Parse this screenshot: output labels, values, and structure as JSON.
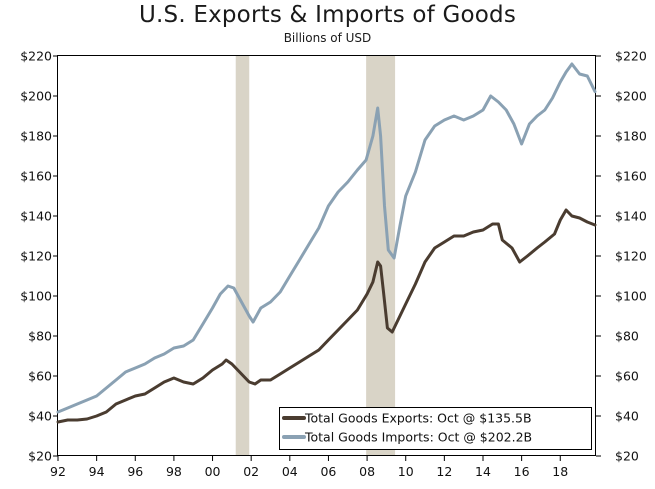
{
  "chart_data": {
    "type": "line",
    "title": "U.S. Exports & Imports of Goods",
    "subtitle": "Billions of USD",
    "xlabel": "",
    "ylabel": "",
    "x_range": [
      1992,
      2019.85
    ],
    "ylim": [
      20,
      220
    ],
    "y_ticks": [
      20,
      40,
      60,
      80,
      100,
      120,
      140,
      160,
      180,
      200,
      220
    ],
    "y_tick_labels": [
      "$20",
      "$40",
      "$60",
      "$80",
      "$100",
      "$120",
      "$140",
      "$160",
      "$180",
      "$200",
      "$220"
    ],
    "x_ticks": [
      1992,
      1994,
      1996,
      1998,
      2000,
      2002,
      2004,
      2006,
      2008,
      2010,
      2012,
      2014,
      2016,
      2018
    ],
    "x_tick_labels": [
      "92",
      "94",
      "96",
      "98",
      "00",
      "02",
      "04",
      "06",
      "08",
      "10",
      "12",
      "14",
      "16",
      "18"
    ],
    "grid": false,
    "dual_y_axis": true,
    "recessions": [
      {
        "start": 2001.2,
        "end": 2001.9
      },
      {
        "start": 2007.95,
        "end": 2009.45
      }
    ],
    "legend_position": "bottom-right",
    "series": [
      {
        "name": "Total Goods Exports: Oct @ $135.5B",
        "color": "#4a3c30",
        "points": [
          [
            1992.0,
            37
          ],
          [
            1992.5,
            38
          ],
          [
            1993.0,
            38
          ],
          [
            1993.5,
            38.5
          ],
          [
            1994.0,
            40
          ],
          [
            1994.5,
            42
          ],
          [
            1995.0,
            46
          ],
          [
            1995.5,
            48
          ],
          [
            1996.0,
            50
          ],
          [
            1996.5,
            51
          ],
          [
            1997.0,
            54
          ],
          [
            1997.5,
            57
          ],
          [
            1998.0,
            59
          ],
          [
            1998.5,
            57
          ],
          [
            1999.0,
            56
          ],
          [
            1999.5,
            59
          ],
          [
            2000.0,
            63
          ],
          [
            2000.5,
            66
          ],
          [
            2000.7,
            68
          ],
          [
            2001.0,
            66
          ],
          [
            2001.5,
            61
          ],
          [
            2001.9,
            57
          ],
          [
            2002.2,
            56
          ],
          [
            2002.5,
            58
          ],
          [
            2003.0,
            58
          ],
          [
            2003.5,
            61
          ],
          [
            2004.0,
            64
          ],
          [
            2004.5,
            67
          ],
          [
            2005.0,
            70
          ],
          [
            2005.5,
            73
          ],
          [
            2006.0,
            78
          ],
          [
            2006.5,
            83
          ],
          [
            2007.0,
            88
          ],
          [
            2007.5,
            93
          ],
          [
            2008.0,
            101
          ],
          [
            2008.3,
            107
          ],
          [
            2008.55,
            117
          ],
          [
            2008.7,
            115
          ],
          [
            2008.85,
            102
          ],
          [
            2009.05,
            84
          ],
          [
            2009.3,
            82
          ],
          [
            2009.6,
            88
          ],
          [
            2010.0,
            96
          ],
          [
            2010.5,
            106
          ],
          [
            2011.0,
            117
          ],
          [
            2011.5,
            124
          ],
          [
            2012.0,
            127
          ],
          [
            2012.5,
            130
          ],
          [
            2013.0,
            130
          ],
          [
            2013.5,
            132
          ],
          [
            2014.0,
            133
          ],
          [
            2014.5,
            136
          ],
          [
            2014.8,
            136
          ],
          [
            2015.0,
            128
          ],
          [
            2015.5,
            124
          ],
          [
            2015.9,
            117
          ],
          [
            2016.3,
            120
          ],
          [
            2016.8,
            124
          ],
          [
            2017.2,
            127
          ],
          [
            2017.7,
            131
          ],
          [
            2018.0,
            138
          ],
          [
            2018.3,
            143
          ],
          [
            2018.6,
            140
          ],
          [
            2019.0,
            139
          ],
          [
            2019.4,
            137
          ],
          [
            2019.8,
            135.5
          ]
        ]
      },
      {
        "name": "Total Goods Imports: Oct @ $202.2B",
        "color": "#8aa1b3",
        "points": [
          [
            1992.0,
            42
          ],
          [
            1992.5,
            44
          ],
          [
            1993.0,
            46
          ],
          [
            1993.5,
            48
          ],
          [
            1994.0,
            50
          ],
          [
            1994.5,
            54
          ],
          [
            1995.0,
            58
          ],
          [
            1995.5,
            62
          ],
          [
            1996.0,
            64
          ],
          [
            1996.5,
            66
          ],
          [
            1997.0,
            69
          ],
          [
            1997.5,
            71
          ],
          [
            1998.0,
            74
          ],
          [
            1998.5,
            75
          ],
          [
            1999.0,
            78
          ],
          [
            1999.5,
            86
          ],
          [
            2000.0,
            94
          ],
          [
            2000.4,
            101
          ],
          [
            2000.8,
            105
          ],
          [
            2001.1,
            104
          ],
          [
            2001.5,
            97
          ],
          [
            2001.9,
            90
          ],
          [
            2002.1,
            87
          ],
          [
            2002.5,
            94
          ],
          [
            2003.0,
            97
          ],
          [
            2003.5,
            102
          ],
          [
            2004.0,
            110
          ],
          [
            2004.5,
            118
          ],
          [
            2005.0,
            126
          ],
          [
            2005.5,
            134
          ],
          [
            2006.0,
            145
          ],
          [
            2006.5,
            152
          ],
          [
            2007.0,
            157
          ],
          [
            2007.5,
            163
          ],
          [
            2007.95,
            168
          ],
          [
            2008.3,
            180
          ],
          [
            2008.55,
            194
          ],
          [
            2008.7,
            180
          ],
          [
            2008.9,
            145
          ],
          [
            2009.1,
            123
          ],
          [
            2009.4,
            119
          ],
          [
            2009.7,
            135
          ],
          [
            2010.0,
            150
          ],
          [
            2010.5,
            162
          ],
          [
            2011.0,
            178
          ],
          [
            2011.5,
            185
          ],
          [
            2012.0,
            188
          ],
          [
            2012.5,
            190
          ],
          [
            2013.0,
            188
          ],
          [
            2013.5,
            190
          ],
          [
            2014.0,
            193
          ],
          [
            2014.4,
            200
          ],
          [
            2014.8,
            197
          ],
          [
            2015.2,
            193
          ],
          [
            2015.6,
            186
          ],
          [
            2016.0,
            176
          ],
          [
            2016.4,
            186
          ],
          [
            2016.8,
            190
          ],
          [
            2017.2,
            193
          ],
          [
            2017.6,
            199
          ],
          [
            2018.0,
            207
          ],
          [
            2018.3,
            212
          ],
          [
            2018.6,
            216
          ],
          [
            2019.0,
            211
          ],
          [
            2019.4,
            210
          ],
          [
            2019.8,
            202.2
          ]
        ]
      }
    ]
  }
}
